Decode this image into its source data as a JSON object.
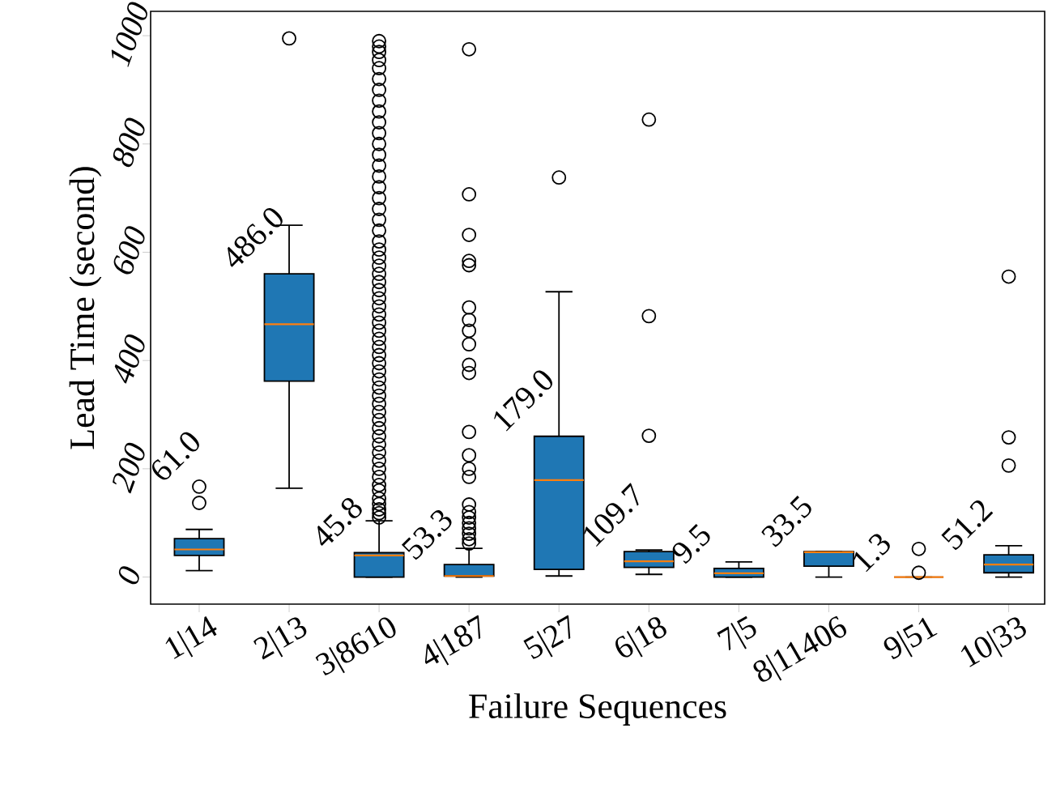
{
  "chart_data": {
    "type": "box",
    "xlabel": "Failure Sequences",
    "ylabel": "Lead Time (second)",
    "categories": [
      "1|14",
      "2|13",
      "3|8610",
      "4|187",
      "5|27",
      "6|18",
      "7|5",
      "8|11406",
      "9|51",
      "10|33"
    ],
    "ylim": [
      -50,
      1045
    ],
    "yticks": [
      0,
      200,
      400,
      600,
      800,
      1000
    ],
    "series": [
      {
        "color": "#1f77b4",
        "boxes": [
          {
            "low": 12,
            "q1": 40,
            "median": 51,
            "q3": 71,
            "high": 88,
            "outliers": [
              137,
              167
            ]
          },
          {
            "low": 164,
            "q1": 362,
            "median": 467,
            "q3": 560,
            "high": 650,
            "outliers": [
              995
            ]
          },
          {
            "low": 0,
            "q1": 0,
            "median": 40,
            "q3": 45,
            "high": 104,
            "outliers": [
              110,
              118,
              125,
              135,
              145,
              160,
              170,
              185,
              200,
              215,
              230,
              245,
              260,
              275,
              290,
              305,
              320,
              335,
              350,
              365,
              380,
              395,
              410,
              425,
              440,
              455,
              470,
              485,
              500,
              515,
              530,
              545,
              560,
              575,
              590,
              605,
              620,
              640,
              660,
              680,
              700,
              720,
              740,
              760,
              780,
              800,
              820,
              840,
              860,
              880,
              900,
              920,
              940,
              955,
              970,
              980,
              990
            ]
          },
          {
            "low": 0,
            "q1": 2,
            "median": 2,
            "q3": 23,
            "high": 53,
            "outliers": [
              62,
              70,
              80,
              90,
              100,
              110,
              120,
              134,
              185,
              200,
              225,
              268,
              377,
              392,
              430,
              455,
              475,
              498,
              576,
              584,
              632,
              707,
              975
            ]
          },
          {
            "low": 2,
            "q1": 14,
            "median": 179,
            "q3": 260,
            "high": 527,
            "outliers": [
              738
            ]
          },
          {
            "low": 5,
            "q1": 18,
            "median": 29,
            "q3": 47,
            "high": 50,
            "outliers": [
              261,
              482,
              845
            ]
          },
          {
            "low": 0,
            "q1": 0,
            "median": 7,
            "q3": 16,
            "high": 28
          },
          {
            "low": 0,
            "q1": 20,
            "median": 46,
            "q3": 47,
            "high": 47
          },
          {
            "low": 0,
            "q1": 0,
            "median": 0,
            "q3": 0,
            "high": 0,
            "outliers": [
              8,
              52
            ]
          },
          {
            "low": 0,
            "q1": 8,
            "median": 23,
            "q3": 41,
            "high": 58,
            "outliers": [
              206,
              258,
              555
            ]
          }
        ]
      }
    ],
    "annotations": [
      "61.0",
      "486.0",
      "45.8",
      "53.3",
      "179.0",
      "109.7",
      "9.5",
      "33.5",
      "1.3",
      "51.2"
    ]
  }
}
